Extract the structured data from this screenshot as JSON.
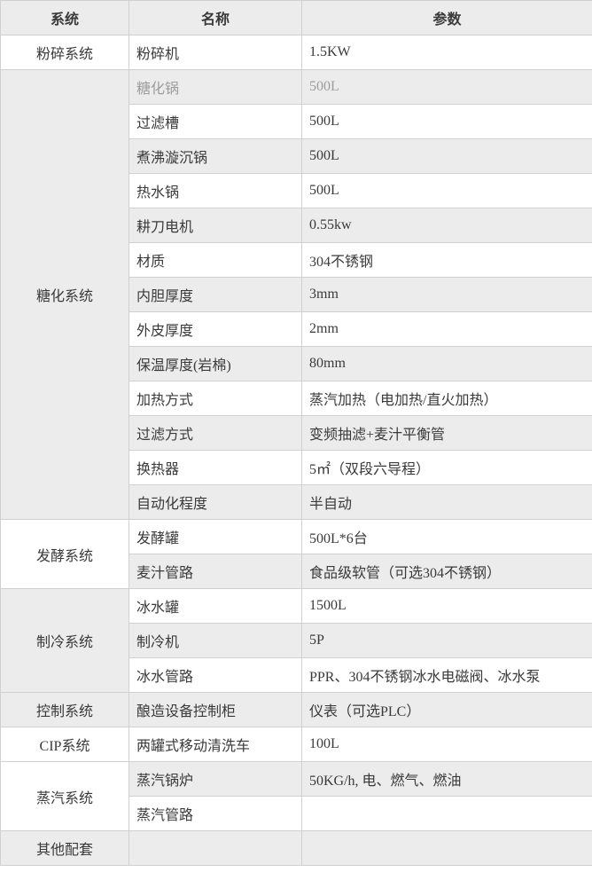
{
  "table": {
    "headers": [
      "系统",
      "名称",
      "参数"
    ],
    "colors": {
      "band_bg": "#ececec",
      "plain_bg": "#ffffff",
      "border": "#d0d0d0",
      "text": "#3a3a3a",
      "muted_text": "#9c9c9c"
    },
    "sections": [
      {
        "system": "粉碎系统",
        "shaded": false,
        "rows": [
          {
            "name": "粉碎机",
            "param": "1.5KW"
          }
        ]
      },
      {
        "system": "糖化系统",
        "shaded": true,
        "rows": [
          {
            "name": "糖化锅",
            "param": "500L",
            "muted": true
          },
          {
            "name": "过滤槽",
            "param": "500L"
          },
          {
            "name": "煮沸漩沉锅",
            "param": "500L"
          },
          {
            "name": "热水锅",
            "param": "500L"
          },
          {
            "name": "耕刀电机",
            "param": "0.55kw"
          },
          {
            "name": "材质",
            "param": "304不锈钢"
          },
          {
            "name": "内胆厚度",
            "param": "3mm"
          },
          {
            "name": "外皮厚度",
            "param": "2mm"
          },
          {
            "name": "保温厚度(岩棉)",
            "param": "80mm"
          },
          {
            "name": "加热方式",
            "param": "蒸汽加热（电加热/直火加热）"
          },
          {
            "name": "过滤方式",
            "param": "变频抽滤+麦汁平衡管"
          },
          {
            "name": "换热器",
            "param": "5㎡（双段六导程）"
          },
          {
            "name": "自动化程度",
            "param": "半自动"
          }
        ]
      },
      {
        "system": "发酵系统",
        "shaded": false,
        "rows": [
          {
            "name": "发酵罐",
            "param": "500L*6台"
          },
          {
            "name": "麦汁管路",
            "param": "食品级软管（可选304不锈钢）"
          }
        ]
      },
      {
        "system": "制冷系统",
        "shaded": true,
        "rows": [
          {
            "name": "冰水罐",
            "param": "1500L"
          },
          {
            "name": "制冷机",
            "param": "5P"
          },
          {
            "name": "冰水管路",
            "param": "PPR、304不锈钢冰水电磁阀、冰水泵"
          }
        ]
      },
      {
        "system": "控制系统",
        "shaded": true,
        "rows": [
          {
            "name": "酿造设备控制柜",
            "param": "仪表（可选PLC）"
          }
        ]
      },
      {
        "system": "CIP系统",
        "shaded": false,
        "rows": [
          {
            "name": "两罐式移动清洗车",
            "param": "100L"
          }
        ]
      },
      {
        "system": "蒸汽系统",
        "shaded": false,
        "rows": [
          {
            "name": "蒸汽锅炉",
            "param": "50KG/h, 电、燃气、燃油"
          },
          {
            "name": "蒸汽管路",
            "param": ""
          }
        ]
      },
      {
        "system": "其他配套",
        "shaded": true,
        "rows": [
          {
            "name": "",
            "param": ""
          }
        ]
      }
    ]
  }
}
